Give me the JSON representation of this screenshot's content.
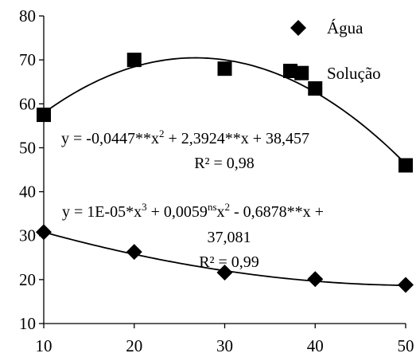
{
  "chart_data": {
    "type": "scatter",
    "title": "",
    "xlabel": "",
    "ylabel": "",
    "xlim": [
      10,
      50
    ],
    "ylim": [
      10,
      80
    ],
    "x_ticks": [
      10,
      20,
      30,
      40,
      50
    ],
    "y_ticks": [
      10,
      20,
      30,
      40,
      50,
      60,
      70,
      80
    ],
    "grid": false,
    "legend_position": "top-right",
    "series": [
      {
        "name": "Água",
        "marker": "diamond",
        "color": "#000000",
        "points": [
          [
            10,
            30.8
          ],
          [
            20,
            26.3
          ],
          [
            30,
            21.6
          ],
          [
            40,
            20.1
          ],
          [
            50,
            18.8
          ]
        ],
        "fit": {
          "type": "cubic",
          "coefficients": [
            1e-05,
            0.0059,
            -0.6878,
            37.081
          ],
          "equation_parts": [
            "y = 1E-05*x",
            "3",
            " + 0,0059",
            "ns",
            "x",
            "2",
            " - 0,6878**x +"
          ],
          "equation_line2": "37,081",
          "r2_label": "R² = 0,99"
        }
      },
      {
        "name": "Solução",
        "marker": "square",
        "color": "#000000",
        "points": [
          [
            10,
            57.5
          ],
          [
            20,
            70.0
          ],
          [
            30,
            68.0
          ],
          [
            38.5,
            67.0
          ],
          [
            40,
            63.5
          ],
          [
            50,
            46.0
          ]
        ],
        "fit": {
          "type": "quadratic",
          "coefficients": [
            -0.0447,
            2.3924,
            38.457
          ],
          "equation_parts": [
            "y = -0,0447**x",
            "2",
            " + 2,3924**x + 38,457"
          ],
          "r2_label": "R² = 0,98"
        }
      }
    ]
  }
}
